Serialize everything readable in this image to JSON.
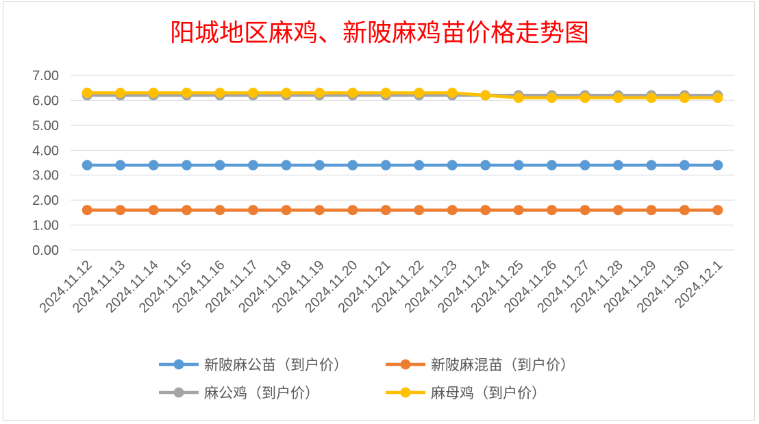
{
  "chart_data": {
    "type": "line",
    "title": "阳城地区麻鸡、新陂麻鸡苗价格走势图",
    "xlabel": "",
    "ylabel": "",
    "ylim": [
      0,
      7
    ],
    "yticks": [
      "0.00",
      "1.00",
      "2.00",
      "3.00",
      "4.00",
      "5.00",
      "6.00",
      "7.00"
    ],
    "grid": true,
    "legend_position": "bottom",
    "categories": [
      "2024.11.12",
      "2024.11.13",
      "2024.11.14",
      "2024.11.15",
      "2024.11.16",
      "2024.11.17",
      "2024.11.18",
      "2024.11.19",
      "2024.11.20",
      "2024.11.21",
      "2024.11.22",
      "2024.11.23",
      "2024.11.24",
      "2024.11.25",
      "2024.11.26",
      "2024.11.27",
      "2024.11.28",
      "2024.11.29",
      "2024.11.30",
      "2024.12.1"
    ],
    "series": [
      {
        "name": "新陂麻公苗（到户价）",
        "color": "#5b9bd5",
        "values": [
          3.4,
          3.4,
          3.4,
          3.4,
          3.4,
          3.4,
          3.4,
          3.4,
          3.4,
          3.4,
          3.4,
          3.4,
          3.4,
          3.4,
          3.4,
          3.4,
          3.4,
          3.4,
          3.4,
          3.4
        ]
      },
      {
        "name": "新陂麻混苗（到户价）",
        "color": "#ed7d31",
        "values": [
          1.6,
          1.6,
          1.6,
          1.6,
          1.6,
          1.6,
          1.6,
          1.6,
          1.6,
          1.6,
          1.6,
          1.6,
          1.6,
          1.6,
          1.6,
          1.6,
          1.6,
          1.6,
          1.6,
          1.6
        ]
      },
      {
        "name": "麻公鸡（到户价）",
        "color": "#a5a5a5",
        "values": [
          6.2,
          6.2,
          6.2,
          6.2,
          6.2,
          6.2,
          6.2,
          6.2,
          6.2,
          6.2,
          6.2,
          6.2,
          6.2,
          6.2,
          6.2,
          6.2,
          6.2,
          6.2,
          6.2,
          6.2
        ]
      },
      {
        "name": "麻母鸡（到户价）",
        "color": "#ffc000",
        "values": [
          6.3,
          6.3,
          6.3,
          6.3,
          6.3,
          6.3,
          6.3,
          6.3,
          6.3,
          6.3,
          6.3,
          6.3,
          6.2,
          6.1,
          6.1,
          6.1,
          6.1,
          6.1,
          6.1,
          6.1
        ]
      }
    ]
  }
}
